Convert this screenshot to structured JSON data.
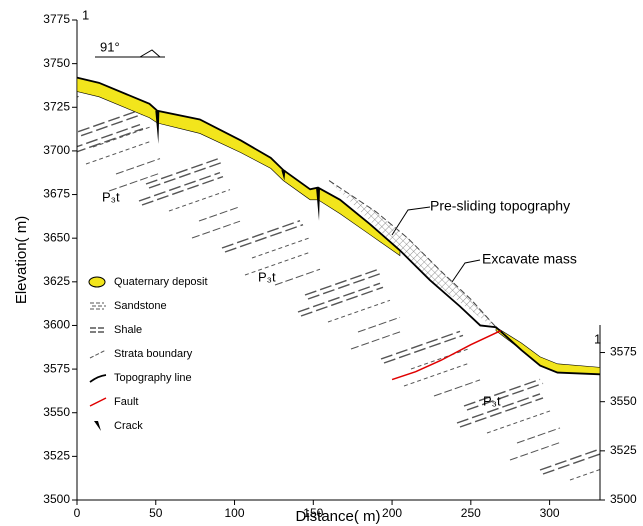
{
  "chart_data": {
    "type": "section",
    "xlabel": "Distance( m)",
    "ylabel": "Elevation( m)",
    "xlim": [
      0,
      332
    ],
    "xticks": [
      0,
      50,
      100,
      150,
      200,
      250,
      300
    ],
    "ylim": [
      3500,
      3775
    ],
    "yticks": [
      3500,
      3525,
      3550,
      3575,
      3600,
      3625,
      3650,
      3675,
      3700,
      3725,
      3750,
      3775
    ],
    "y2lim": [
      3500,
      3589
    ],
    "y2ticks": [
      3500,
      3525,
      3550,
      3575
    ],
    "section_marks": [
      "1",
      "1"
    ],
    "dip": "91°",
    "annotations": [
      "Pre-sliding topography",
      "Excavate mass"
    ],
    "strata_labels": [
      "P₃t",
      "P₃t",
      "P₃t"
    ],
    "series": [
      {
        "name": "Topography line",
        "color": "#000000",
        "x": [
          0,
          14,
          46,
          51,
          78,
          104,
          123,
          131,
          148,
          153,
          167,
          186,
          205,
          224,
          243,
          256,
          266,
          282,
          294,
          305,
          332
        ],
        "values": [
          3742,
          3739,
          3727,
          3723,
          3718,
          3706,
          3696,
          3689,
          3678,
          3679,
          3672,
          3658,
          3643,
          3626,
          3611,
          3600,
          3599,
          3586,
          3577,
          3573,
          3572
        ]
      },
      {
        "name": "Fault",
        "color": "#e00000",
        "x": [
          200,
          215,
          231,
          250,
          269
        ],
        "values": [
          3569,
          3573.5,
          3580,
          3589,
          3597
        ]
      }
    ],
    "pre_sliding": {
      "x": [
        160,
        190,
        210,
        230,
        250,
        266
      ],
      "values": [
        3683,
        3665,
        3650,
        3632,
        3615,
        3599
      ]
    },
    "deposit": {
      "name": "Quaternary deposit",
      "color": "#f2e51c",
      "x": [
        0,
        14,
        46,
        51,
        78,
        104,
        123,
        131,
        148,
        153,
        167,
        186,
        205,
        null,
        266,
        282,
        294,
        305,
        332
      ],
      "top": [
        3742,
        3739,
        3727,
        3723,
        3718,
        3706,
        3696,
        3689,
        3678,
        3679,
        3672,
        3658,
        3643,
        null,
        3599,
        3590,
        3582,
        3578,
        3576
      ],
      "bottom": [
        3734,
        3731,
        3719,
        3716,
        3710,
        3699,
        3690,
        3683,
        3672,
        3672,
        3664,
        3652,
        3640,
        null,
        3597,
        3586,
        3577,
        3573,
        3572
      ]
    },
    "cracks": {
      "name": "Crack",
      "x": [
        51,
        131,
        153
      ],
      "bottom": [
        3704,
        3683,
        3660
      ]
    },
    "legend_items": [
      "Sandstone",
      "Shale",
      "Strata boundary"
    ]
  }
}
